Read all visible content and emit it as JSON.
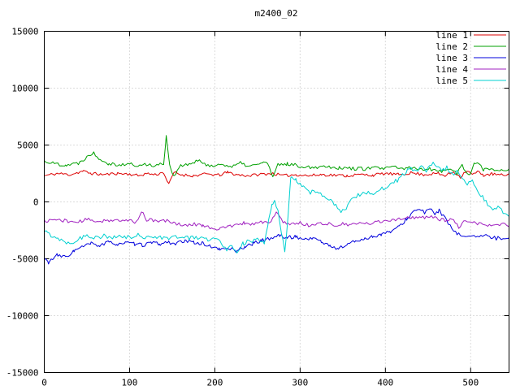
{
  "chart_data": {
    "type": "line",
    "title": "m2400_02",
    "xlabel": "",
    "ylabel": "",
    "xlim": [
      0,
      545
    ],
    "ylim": [
      -15000,
      15000
    ],
    "x_ticks": [
      0,
      100,
      200,
      300,
      400,
      500
    ],
    "y_ticks": [
      -15000,
      -10000,
      -5000,
      0,
      5000,
      10000,
      15000
    ],
    "grid": true,
    "grid_style": "dotted",
    "grid_color": "#b8b8b8",
    "border_color": "#000000",
    "background": "#ffffff",
    "legend_position": "top-right-inside",
    "series": [
      {
        "name": "line 1",
        "color": "#dd0000",
        "noise": 130,
        "seed": 11,
        "keypoints": [
          [
            0,
            2300
          ],
          [
            15,
            2500
          ],
          [
            30,
            2400
          ],
          [
            45,
            2700
          ],
          [
            55,
            2500
          ],
          [
            70,
            2400
          ],
          [
            85,
            2500
          ],
          [
            100,
            2450
          ],
          [
            110,
            2300
          ],
          [
            120,
            2500
          ],
          [
            130,
            2400
          ],
          [
            140,
            2600
          ],
          [
            146,
            1500
          ],
          [
            152,
            2600
          ],
          [
            160,
            2400
          ],
          [
            175,
            2300
          ],
          [
            190,
            2450
          ],
          [
            205,
            2350
          ],
          [
            215,
            2600
          ],
          [
            225,
            2400
          ],
          [
            240,
            2300
          ],
          [
            255,
            2450
          ],
          [
            268,
            2500
          ],
          [
            280,
            2300
          ],
          [
            295,
            2400
          ],
          [
            310,
            2300
          ],
          [
            325,
            2400
          ],
          [
            340,
            2350
          ],
          [
            355,
            2300
          ],
          [
            370,
            2400
          ],
          [
            385,
            2350
          ],
          [
            400,
            2500
          ],
          [
            415,
            2400
          ],
          [
            430,
            2550
          ],
          [
            445,
            2400
          ],
          [
            460,
            2500
          ],
          [
            470,
            2300
          ],
          [
            480,
            2650
          ],
          [
            488,
            2200
          ],
          [
            495,
            2750
          ],
          [
            502,
            2400
          ],
          [
            508,
            2650
          ],
          [
            515,
            2350
          ],
          [
            525,
            2450
          ],
          [
            535,
            2350
          ],
          [
            545,
            2400
          ]
        ]
      },
      {
        "name": "line 2",
        "color": "#00a000",
        "noise": 160,
        "seed": 22,
        "keypoints": [
          [
            0,
            3600
          ],
          [
            10,
            3400
          ],
          [
            25,
            3250
          ],
          [
            40,
            3400
          ],
          [
            52,
            4100
          ],
          [
            58,
            4300
          ],
          [
            65,
            3800
          ],
          [
            75,
            3400
          ],
          [
            90,
            3250
          ],
          [
            100,
            3350
          ],
          [
            110,
            3150
          ],
          [
            120,
            3300
          ],
          [
            132,
            3200
          ],
          [
            140,
            3400
          ],
          [
            143,
            5800
          ],
          [
            147,
            3300
          ],
          [
            152,
            2200
          ],
          [
            158,
            3100
          ],
          [
            170,
            3300
          ],
          [
            180,
            3600
          ],
          [
            190,
            3300
          ],
          [
            200,
            3150
          ],
          [
            210,
            3350
          ],
          [
            220,
            3050
          ],
          [
            230,
            3400
          ],
          [
            240,
            3150
          ],
          [
            250,
            3250
          ],
          [
            257,
            3550
          ],
          [
            263,
            3250
          ],
          [
            268,
            2100
          ],
          [
            274,
            3250
          ],
          [
            285,
            3350
          ],
          [
            300,
            3150
          ],
          [
            315,
            3050
          ],
          [
            330,
            3150
          ],
          [
            345,
            3000
          ],
          [
            360,
            2950
          ],
          [
            375,
            2900
          ],
          [
            390,
            3000
          ],
          [
            400,
            2900
          ],
          [
            410,
            3100
          ],
          [
            420,
            2900
          ],
          [
            430,
            3000
          ],
          [
            440,
            2850
          ],
          [
            450,
            2950
          ],
          [
            460,
            2800
          ],
          [
            470,
            2700
          ],
          [
            478,
            2950
          ],
          [
            484,
            2450
          ],
          [
            490,
            3300
          ],
          [
            496,
            2400
          ],
          [
            501,
            2700
          ],
          [
            505,
            3500
          ],
          [
            510,
            3250
          ],
          [
            515,
            2800
          ],
          [
            522,
            2950
          ],
          [
            530,
            2800
          ],
          [
            545,
            2850
          ]
        ]
      },
      {
        "name": "line 3",
        "color": "#0000dd",
        "noise": 160,
        "seed": 33,
        "keypoints": [
          [
            0,
            -5000
          ],
          [
            5,
            -5300
          ],
          [
            15,
            -4700
          ],
          [
            25,
            -4850
          ],
          [
            35,
            -4300
          ],
          [
            45,
            -3950
          ],
          [
            55,
            -3650
          ],
          [
            65,
            -3850
          ],
          [
            75,
            -3550
          ],
          [
            85,
            -3700
          ],
          [
            95,
            -3600
          ],
          [
            105,
            -3700
          ],
          [
            115,
            -3800
          ],
          [
            125,
            -3600
          ],
          [
            135,
            -3700
          ],
          [
            145,
            -3550
          ],
          [
            155,
            -3650
          ],
          [
            165,
            -3450
          ],
          [
            175,
            -3550
          ],
          [
            185,
            -3650
          ],
          [
            195,
            -3900
          ],
          [
            205,
            -4200
          ],
          [
            215,
            -4050
          ],
          [
            225,
            -4300
          ],
          [
            235,
            -3950
          ],
          [
            245,
            -3650
          ],
          [
            255,
            -3400
          ],
          [
            265,
            -3200
          ],
          [
            275,
            -2950
          ],
          [
            285,
            -3150
          ],
          [
            295,
            -3050
          ],
          [
            305,
            -3300
          ],
          [
            315,
            -3150
          ],
          [
            325,
            -3500
          ],
          [
            335,
            -3900
          ],
          [
            345,
            -4100
          ],
          [
            355,
            -3750
          ],
          [
            365,
            -3450
          ],
          [
            375,
            -3250
          ],
          [
            385,
            -3050
          ],
          [
            395,
            -2850
          ],
          [
            405,
            -2650
          ],
          [
            415,
            -2250
          ],
          [
            425,
            -1500
          ],
          [
            433,
            -850
          ],
          [
            440,
            -650
          ],
          [
            446,
            -950
          ],
          [
            452,
            -650
          ],
          [
            458,
            -1000
          ],
          [
            463,
            -750
          ],
          [
            468,
            -1250
          ],
          [
            473,
            -1800
          ],
          [
            478,
            -2400
          ],
          [
            483,
            -2800
          ],
          [
            492,
            -3000
          ],
          [
            500,
            -2900
          ],
          [
            510,
            -3100
          ],
          [
            520,
            -3000
          ],
          [
            530,
            -3200
          ],
          [
            545,
            -3100
          ]
        ]
      },
      {
        "name": "line 4",
        "color": "#a020c0",
        "noise": 150,
        "seed": 44,
        "keypoints": [
          [
            0,
            -1700
          ],
          [
            12,
            -1550
          ],
          [
            25,
            -1650
          ],
          [
            38,
            -1800
          ],
          [
            50,
            -1550
          ],
          [
            62,
            -1700
          ],
          [
            75,
            -1600
          ],
          [
            88,
            -1700
          ],
          [
            100,
            -1600
          ],
          [
            108,
            -1800
          ],
          [
            114,
            -800
          ],
          [
            120,
            -1550
          ],
          [
            132,
            -1700
          ],
          [
            145,
            -1650
          ],
          [
            155,
            -1900
          ],
          [
            165,
            -2100
          ],
          [
            175,
            -1950
          ],
          [
            185,
            -2050
          ],
          [
            195,
            -2250
          ],
          [
            205,
            -2400
          ],
          [
            215,
            -2150
          ],
          [
            225,
            -2050
          ],
          [
            235,
            -1850
          ],
          [
            245,
            -1950
          ],
          [
            255,
            -1750
          ],
          [
            265,
            -1850
          ],
          [
            272,
            -950
          ],
          [
            280,
            -1750
          ],
          [
            290,
            -1950
          ],
          [
            300,
            -1850
          ],
          [
            310,
            -2050
          ],
          [
            320,
            -1950
          ],
          [
            330,
            -1850
          ],
          [
            340,
            -2100
          ],
          [
            350,
            -1950
          ],
          [
            360,
            -2050
          ],
          [
            370,
            -1850
          ],
          [
            380,
            -1950
          ],
          [
            390,
            -1750
          ],
          [
            400,
            -1650
          ],
          [
            410,
            -1550
          ],
          [
            420,
            -1450
          ],
          [
            430,
            -1350
          ],
          [
            440,
            -1450
          ],
          [
            450,
            -1250
          ],
          [
            460,
            -1450
          ],
          [
            470,
            -1650
          ],
          [
            480,
            -1500
          ],
          [
            486,
            -2350
          ],
          [
            492,
            -1800
          ],
          [
            500,
            -1750
          ],
          [
            510,
            -1900
          ],
          [
            520,
            -2100
          ],
          [
            530,
            -2000
          ],
          [
            545,
            -2000
          ]
        ]
      },
      {
        "name": "line 5",
        "color": "#00d0d0",
        "noise": 200,
        "seed": 55,
        "keypoints": [
          [
            0,
            -2600
          ],
          [
            10,
            -3000
          ],
          [
            20,
            -3300
          ],
          [
            30,
            -3650
          ],
          [
            40,
            -3250
          ],
          [
            50,
            -2950
          ],
          [
            60,
            -3100
          ],
          [
            70,
            -3000
          ],
          [
            80,
            -3200
          ],
          [
            90,
            -3050
          ],
          [
            100,
            -3150
          ],
          [
            110,
            -2950
          ],
          [
            120,
            -3100
          ],
          [
            130,
            -3000
          ],
          [
            140,
            -3200
          ],
          [
            150,
            -3100
          ],
          [
            160,
            -3050
          ],
          [
            170,
            -3200
          ],
          [
            180,
            -3100
          ],
          [
            190,
            -3300
          ],
          [
            200,
            -3250
          ],
          [
            208,
            -3550
          ],
          [
            214,
            -4250
          ],
          [
            220,
            -3850
          ],
          [
            226,
            -4300
          ],
          [
            233,
            -3650
          ],
          [
            242,
            -3450
          ],
          [
            252,
            -3350
          ],
          [
            258,
            -3550
          ],
          [
            263,
            -1800
          ],
          [
            267,
            -300
          ],
          [
            270,
            200
          ],
          [
            274,
            -900
          ],
          [
            278,
            -2600
          ],
          [
            282,
            -4500
          ],
          [
            286,
            -1000
          ],
          [
            289,
            2300
          ],
          [
            295,
            1900
          ],
          [
            302,
            1400
          ],
          [
            310,
            800
          ],
          [
            318,
            1000
          ],
          [
            326,
            600
          ],
          [
            334,
            200
          ],
          [
            342,
            -400
          ],
          [
            348,
            -1000
          ],
          [
            354,
            -500
          ],
          [
            360,
            300
          ],
          [
            368,
            600
          ],
          [
            376,
            900
          ],
          [
            384,
            700
          ],
          [
            392,
            1100
          ],
          [
            400,
            1300
          ],
          [
            408,
            1600
          ],
          [
            416,
            2000
          ],
          [
            424,
            2600
          ],
          [
            430,
            3000
          ],
          [
            436,
            2600
          ],
          [
            442,
            3200
          ],
          [
            448,
            2800
          ],
          [
            454,
            3400
          ],
          [
            460,
            3200
          ],
          [
            466,
            2700
          ],
          [
            472,
            3000
          ],
          [
            478,
            2400
          ],
          [
            484,
            2700
          ],
          [
            490,
            2000
          ],
          [
            496,
            1500
          ],
          [
            502,
            1800
          ],
          [
            508,
            1100
          ],
          [
            514,
            400
          ],
          [
            520,
            -300
          ],
          [
            526,
            -600
          ],
          [
            532,
            -500
          ],
          [
            538,
            -950
          ],
          [
            545,
            -1150
          ]
        ]
      }
    ]
  }
}
